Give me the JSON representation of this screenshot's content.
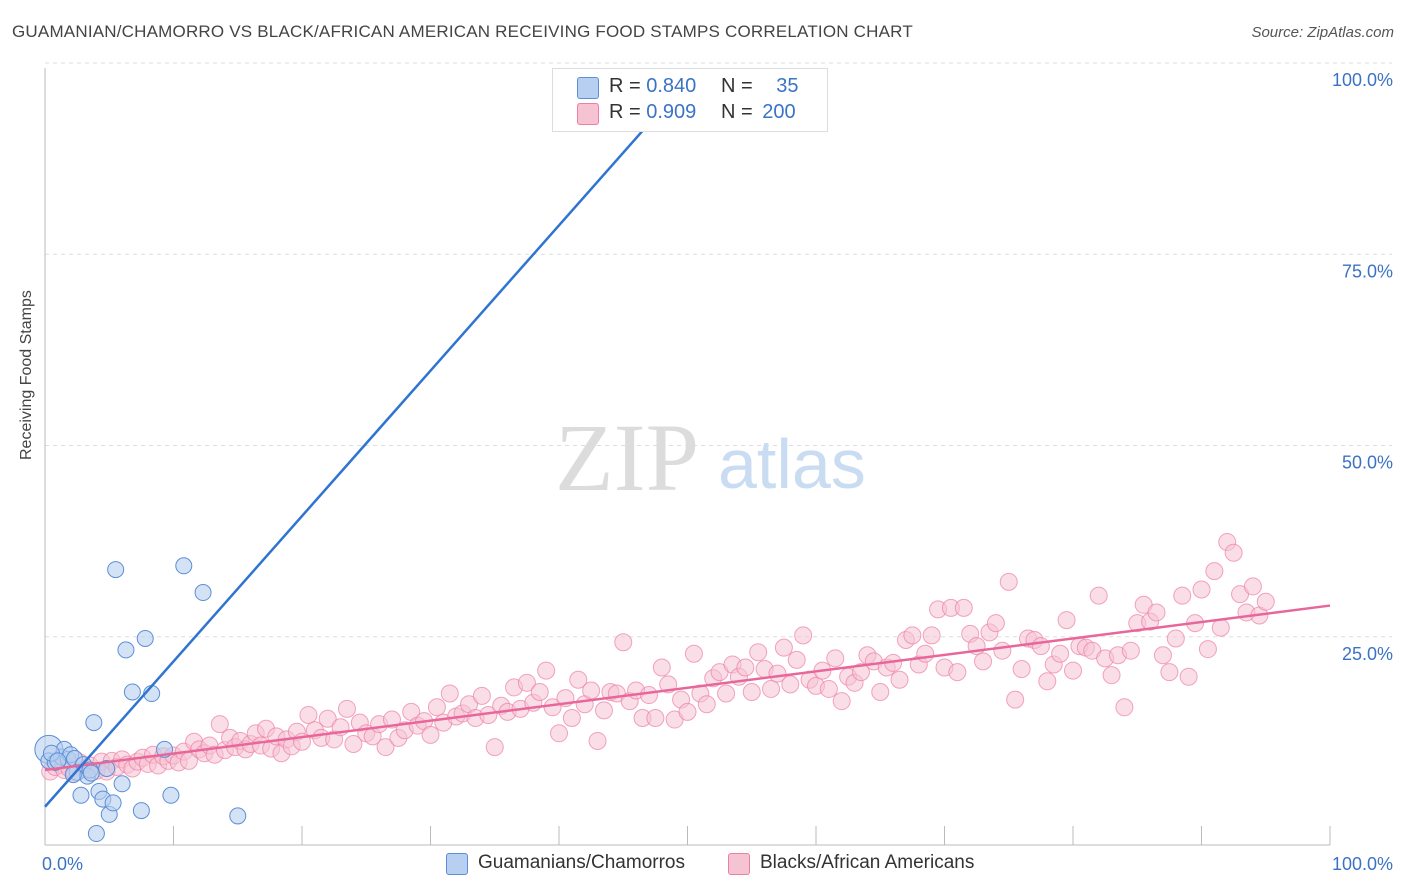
{
  "title": "GUAMANIAN/CHAMORRO VS BLACK/AFRICAN AMERICAN RECEIVING FOOD STAMPS CORRELATION CHART",
  "source": "Source: ZipAtlas.com",
  "watermark": {
    "zip": "ZIP",
    "atlas": "atlas"
  },
  "colors": {
    "blue": "#5b8fd6",
    "blue_fill": "#b7cff0",
    "blue_line": "#2f74d0",
    "pink": "#ee7fa3",
    "pink_fill": "#f6c3d3",
    "pink_line": "#e8679a",
    "axis_text": "#3b73c4",
    "grid": "#dddddd"
  },
  "legend": {
    "rows": [
      {
        "r_label": "R = ",
        "r_value": "0.840",
        "n_label": "N = ",
        "n_value": "35"
      },
      {
        "r_label": "R = ",
        "r_value": "0.909",
        "n_label": "N = ",
        "n_value": "200"
      }
    ],
    "bottom": [
      "Guamanians/Chamorros",
      "Blacks/African Americans"
    ]
  },
  "chart_data": {
    "type": "scatter",
    "title": "GUAMANIAN/CHAMORRO VS BLACK/AFRICAN AMERICAN RECEIVING FOOD STAMPS CORRELATION CHART",
    "xlabel": "",
    "ylabel": "Receiving Food Stamps",
    "xlim": [
      0,
      100
    ],
    "ylim": [
      0,
      100
    ],
    "x_tick_labels": [
      "0.0%",
      "100.0%"
    ],
    "y_tick_labels": [
      "25.0%",
      "50.0%",
      "75.0%",
      "100.0%"
    ],
    "y_ticks": [
      25,
      50,
      75,
      100
    ],
    "grid": "horizontal dashed",
    "series": [
      {
        "name": "Guamanians/Chamorros",
        "R": 0.84,
        "N": 35,
        "trend": {
          "x": [
            0,
            50
          ],
          "y": [
            5,
            100
          ]
        },
        "points": [
          [
            0.3,
            11.0
          ],
          [
            0.8,
            10.8
          ],
          [
            1.3,
            11.5
          ],
          [
            1.5,
            12.5
          ],
          [
            1.8,
            11.2
          ],
          [
            2.0,
            11.8
          ],
          [
            2.3,
            11.3
          ],
          [
            2.5,
            9.5
          ],
          [
            2.8,
            6.5
          ],
          [
            3.0,
            10.5
          ],
          [
            3.3,
            9.0
          ],
          [
            3.5,
            9.8
          ],
          [
            3.8,
            16.0
          ],
          [
            4.0,
            1.5
          ],
          [
            4.2,
            7.0
          ],
          [
            4.5,
            6.0
          ],
          [
            4.8,
            10.0
          ],
          [
            5.0,
            4.0
          ],
          [
            5.3,
            5.5
          ],
          [
            5.5,
            36.0
          ],
          [
            6.0,
            8.0
          ],
          [
            6.3,
            25.5
          ],
          [
            6.8,
            20.0
          ],
          [
            7.5,
            4.5
          ],
          [
            7.8,
            27.0
          ],
          [
            8.3,
            19.8
          ],
          [
            9.3,
            12.5
          ],
          [
            9.8,
            6.5
          ],
          [
            10.8,
            36.5
          ],
          [
            12.3,
            33.0
          ],
          [
            15.0,
            3.8
          ],
          [
            0.5,
            12.0
          ],
          [
            1.0,
            11.0
          ],
          [
            2.2,
            9.2
          ],
          [
            3.6,
            9.4
          ]
        ]
      },
      {
        "name": "Blacks/African Americans",
        "R": 0.909,
        "N": 200,
        "trend": {
          "x": [
            0,
            100
          ],
          "y": [
            9.8,
            31.3
          ]
        },
        "points": [
          [
            0.4,
            9.6
          ],
          [
            0.8,
            10.2
          ],
          [
            1.2,
            10.5
          ],
          [
            1.5,
            9.8
          ],
          [
            1.9,
            10.0
          ],
          [
            2.3,
            9.5
          ],
          [
            2.7,
            10.8
          ],
          [
            3.1,
            9.9
          ],
          [
            3.5,
            10.4
          ],
          [
            4.0,
            9.7
          ],
          [
            4.4,
            10.9
          ],
          [
            4.8,
            9.6
          ],
          [
            5.2,
            11.0
          ],
          [
            5.6,
            10.2
          ],
          [
            6.0,
            11.2
          ],
          [
            6.4,
            10.5
          ],
          [
            6.8,
            10.0
          ],
          [
            7.2,
            10.9
          ],
          [
            7.6,
            11.4
          ],
          [
            8.0,
            10.6
          ],
          [
            8.4,
            11.8
          ],
          [
            8.8,
            10.4
          ],
          [
            9.2,
            11.6
          ],
          [
            9.6,
            11.0
          ],
          [
            10.0,
            11.7
          ],
          [
            10.4,
            10.8
          ],
          [
            10.8,
            12.2
          ],
          [
            11.2,
            11.0
          ],
          [
            11.6,
            13.5
          ],
          [
            12.0,
            12.5
          ],
          [
            12.4,
            12.0
          ],
          [
            12.8,
            13.0
          ],
          [
            13.2,
            11.8
          ],
          [
            13.6,
            15.8
          ],
          [
            14.0,
            12.4
          ],
          [
            14.4,
            14.0
          ],
          [
            14.8,
            12.8
          ],
          [
            15.2,
            13.6
          ],
          [
            15.6,
            12.5
          ],
          [
            16.0,
            13.2
          ],
          [
            16.4,
            14.6
          ],
          [
            16.8,
            13.0
          ],
          [
            17.2,
            15.2
          ],
          [
            17.6,
            12.6
          ],
          [
            18.0,
            14.2
          ],
          [
            18.4,
            12.0
          ],
          [
            18.8,
            13.8
          ],
          [
            19.2,
            12.9
          ],
          [
            19.6,
            14.8
          ],
          [
            20.0,
            13.5
          ],
          [
            20.5,
            17.0
          ],
          [
            21.0,
            15.0
          ],
          [
            21.5,
            14.0
          ],
          [
            22.0,
            16.5
          ],
          [
            22.5,
            13.8
          ],
          [
            23.0,
            15.4
          ],
          [
            23.5,
            17.8
          ],
          [
            24.0,
            13.2
          ],
          [
            24.5,
            16.0
          ],
          [
            25.0,
            14.6
          ],
          [
            25.5,
            14.2
          ],
          [
            26.0,
            15.8
          ],
          [
            26.5,
            12.8
          ],
          [
            27.0,
            16.4
          ],
          [
            27.5,
            14.0
          ],
          [
            28.0,
            15.0
          ],
          [
            28.5,
            17.4
          ],
          [
            29.0,
            15.6
          ],
          [
            29.5,
            16.2
          ],
          [
            30.0,
            14.4
          ],
          [
            30.5,
            18.0
          ],
          [
            31.0,
            16.0
          ],
          [
            31.5,
            19.8
          ],
          [
            32.0,
            16.8
          ],
          [
            32.5,
            17.2
          ],
          [
            33.0,
            18.4
          ],
          [
            33.5,
            16.6
          ],
          [
            34.0,
            19.5
          ],
          [
            34.5,
            17.0
          ],
          [
            35.0,
            12.8
          ],
          [
            35.5,
            18.2
          ],
          [
            36.0,
            17.4
          ],
          [
            36.5,
            20.6
          ],
          [
            37.0,
            17.8
          ],
          [
            37.5,
            21.2
          ],
          [
            38.0,
            18.6
          ],
          [
            38.5,
            20.0
          ],
          [
            39.0,
            22.8
          ],
          [
            39.5,
            18.0
          ],
          [
            40.0,
            14.6
          ],
          [
            40.5,
            19.2
          ],
          [
            41.0,
            16.6
          ],
          [
            41.5,
            21.6
          ],
          [
            42.0,
            18.4
          ],
          [
            42.5,
            20.2
          ],
          [
            43.0,
            13.6
          ],
          [
            43.5,
            17.6
          ],
          [
            44.0,
            20.0
          ],
          [
            44.5,
            19.8
          ],
          [
            45.0,
            26.5
          ],
          [
            45.5,
            18.8
          ],
          [
            46.0,
            20.2
          ],
          [
            46.5,
            16.6
          ],
          [
            47.0,
            19.6
          ],
          [
            47.5,
            16.6
          ],
          [
            48.0,
            23.2
          ],
          [
            48.5,
            21.0
          ],
          [
            49.0,
            16.4
          ],
          [
            49.5,
            19.0
          ],
          [
            50.0,
            17.4
          ],
          [
            50.5,
            25.0
          ],
          [
            51.0,
            19.8
          ],
          [
            51.5,
            18.4
          ],
          [
            52.0,
            21.8
          ],
          [
            52.5,
            22.6
          ],
          [
            53.0,
            19.8
          ],
          [
            53.5,
            23.6
          ],
          [
            54.0,
            22.0
          ],
          [
            54.5,
            23.2
          ],
          [
            55.0,
            20.0
          ],
          [
            55.5,
            25.2
          ],
          [
            56.0,
            23.0
          ],
          [
            56.5,
            20.4
          ],
          [
            57.0,
            22.4
          ],
          [
            57.5,
            25.8
          ],
          [
            58.0,
            21.0
          ],
          [
            58.5,
            24.2
          ],
          [
            59.0,
            27.4
          ],
          [
            59.5,
            21.6
          ],
          [
            60.0,
            20.8
          ],
          [
            60.5,
            22.8
          ],
          [
            61.0,
            20.4
          ],
          [
            61.5,
            24.4
          ],
          [
            62.0,
            18.8
          ],
          [
            62.5,
            22.0
          ],
          [
            63.0,
            21.2
          ],
          [
            63.5,
            22.6
          ],
          [
            64.0,
            24.8
          ],
          [
            64.5,
            24.0
          ],
          [
            65.0,
            20.0
          ],
          [
            65.5,
            23.2
          ],
          [
            66.0,
            23.8
          ],
          [
            66.5,
            21.6
          ],
          [
            67.0,
            26.8
          ],
          [
            67.5,
            27.4
          ],
          [
            68.0,
            23.6
          ],
          [
            68.5,
            25.0
          ],
          [
            69.0,
            27.4
          ],
          [
            69.5,
            30.8
          ],
          [
            70.0,
            23.2
          ],
          [
            70.5,
            31.0
          ],
          [
            71.0,
            22.6
          ],
          [
            71.5,
            31.0
          ],
          [
            72.0,
            27.6
          ],
          [
            72.5,
            26.0
          ],
          [
            73.0,
            24.0
          ],
          [
            73.5,
            27.8
          ],
          [
            74.0,
            29.0
          ],
          [
            74.5,
            25.4
          ],
          [
            75.0,
            34.4
          ],
          [
            75.5,
            19.0
          ],
          [
            76.0,
            23.0
          ],
          [
            76.5,
            27.0
          ],
          [
            77.0,
            26.8
          ],
          [
            77.5,
            26.0
          ],
          [
            78.0,
            21.4
          ],
          [
            78.5,
            23.6
          ],
          [
            79.0,
            25.0
          ],
          [
            79.5,
            29.4
          ],
          [
            80.0,
            22.8
          ],
          [
            80.5,
            26.0
          ],
          [
            81.0,
            25.8
          ],
          [
            81.5,
            25.4
          ],
          [
            82.0,
            32.6
          ],
          [
            82.5,
            24.4
          ],
          [
            83.0,
            22.2
          ],
          [
            83.5,
            24.8
          ],
          [
            84.0,
            18.0
          ],
          [
            84.5,
            25.4
          ],
          [
            85.0,
            29.0
          ],
          [
            85.5,
            31.4
          ],
          [
            86.0,
            29.2
          ],
          [
            86.5,
            30.4
          ],
          [
            87.0,
            24.8
          ],
          [
            87.5,
            22.6
          ],
          [
            88.0,
            27.0
          ],
          [
            88.5,
            32.6
          ],
          [
            89.0,
            22.0
          ],
          [
            89.5,
            29.0
          ],
          [
            90.0,
            33.4
          ],
          [
            90.5,
            25.6
          ],
          [
            91.0,
            35.8
          ],
          [
            91.5,
            28.4
          ],
          [
            92.0,
            39.6
          ],
          [
            92.5,
            38.2
          ],
          [
            93.0,
            32.8
          ],
          [
            93.5,
            30.4
          ],
          [
            94.0,
            33.8
          ],
          [
            94.5,
            30.0
          ],
          [
            95.0,
            31.8
          ]
        ]
      }
    ]
  }
}
